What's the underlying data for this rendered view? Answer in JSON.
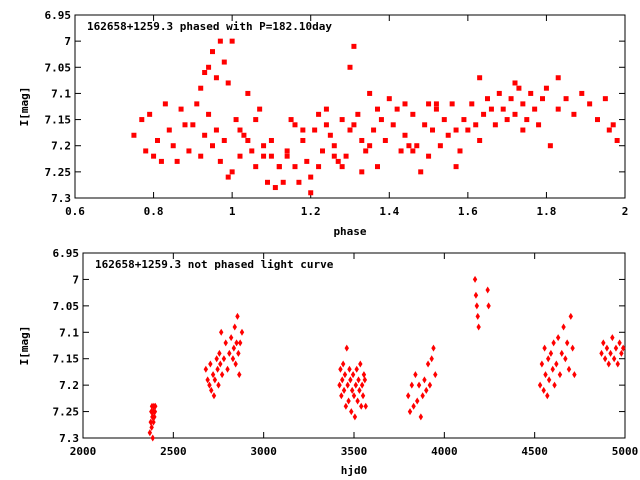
{
  "chart_data": [
    {
      "type": "scatter",
      "title": "162658+1259.3 phased with P=182.10day",
      "xlabel": "phase",
      "ylabel": "I[mag]",
      "xlim": [
        0.6,
        2.0
      ],
      "ylim": [
        6.95,
        7.3
      ],
      "y_inverted": true,
      "xticks": [
        "0.6",
        "0.8",
        "1",
        "1.2",
        "1.4",
        "1.6",
        "1.8",
        "2"
      ],
      "xtick_values": [
        0.6,
        0.8,
        1.0,
        1.2,
        1.4,
        1.6,
        1.8,
        2.0
      ],
      "yticks": [
        "6.95",
        "7",
        "7.05",
        "7.1",
        "7.15",
        "7.2",
        "7.25",
        "7.3"
      ],
      "ytick_values": [
        6.95,
        7.0,
        7.05,
        7.1,
        7.15,
        7.2,
        7.25,
        7.3
      ],
      "marker": "square",
      "color": "#ff0000",
      "points": [
        [
          0.75,
          7.18
        ],
        [
          0.77,
          7.15
        ],
        [
          0.78,
          7.21
        ],
        [
          0.79,
          7.14
        ],
        [
          0.8,
          7.22
        ],
        [
          0.81,
          7.19
        ],
        [
          0.82,
          7.23
        ],
        [
          0.83,
          7.12
        ],
        [
          0.84,
          7.17
        ],
        [
          0.85,
          7.2
        ],
        [
          0.86,
          7.23
        ],
        [
          0.87,
          7.13
        ],
        [
          0.88,
          7.16
        ],
        [
          0.89,
          7.21
        ],
        [
          0.9,
          7.16
        ],
        [
          0.91,
          7.12
        ],
        [
          0.92,
          7.22
        ],
        [
          0.93,
          7.18
        ],
        [
          0.94,
          7.14
        ],
        [
          0.95,
          7.2
        ],
        [
          0.96,
          7.17
        ],
        [
          0.97,
          7.23
        ],
        [
          0.98,
          7.19
        ],
        [
          0.99,
          7.26
        ],
        [
          1.0,
          7.25
        ],
        [
          1.01,
          7.15
        ],
        [
          1.02,
          7.22
        ],
        [
          1.03,
          7.18
        ],
        [
          1.04,
          7.1
        ],
        [
          1.05,
          7.21
        ],
        [
          1.06,
          7.24
        ],
        [
          1.07,
          7.13
        ],
        [
          1.08,
          7.22
        ],
        [
          1.09,
          7.27
        ],
        [
          1.1,
          7.19
        ],
        [
          1.11,
          7.28
        ],
        [
          1.12,
          7.24
        ],
        [
          1.13,
          7.27
        ],
        [
          1.14,
          7.21
        ],
        [
          1.15,
          7.15
        ],
        [
          1.16,
          7.24
        ],
        [
          1.17,
          7.27
        ],
        [
          1.18,
          7.19
        ],
        [
          1.19,
          7.23
        ],
        [
          1.2,
          7.26
        ],
        [
          1.21,
          7.17
        ],
        [
          1.22,
          7.14
        ],
        [
          1.23,
          7.21
        ],
        [
          1.24,
          7.16
        ],
        [
          1.25,
          7.18
        ],
        [
          1.26,
          7.2
        ],
        [
          1.27,
          7.23
        ],
        [
          1.28,
          7.15
        ],
        [
          1.29,
          7.22
        ],
        [
          1.3,
          7.17
        ],
        [
          1.31,
          7.16
        ],
        [
          1.32,
          7.14
        ],
        [
          1.33,
          7.19
        ],
        [
          1.34,
          7.21
        ],
        [
          1.35,
          7.1
        ],
        [
          1.36,
          7.17
        ],
        [
          1.37,
          7.13
        ],
        [
          1.38,
          7.15
        ],
        [
          1.39,
          7.19
        ],
        [
          1.4,
          7.11
        ],
        [
          1.41,
          7.16
        ],
        [
          1.42,
          7.13
        ],
        [
          1.43,
          7.21
        ],
        [
          1.44,
          7.18
        ],
        [
          1.45,
          7.2
        ],
        [
          1.46,
          7.14
        ],
        [
          1.47,
          7.2
        ],
        [
          1.48,
          7.25
        ],
        [
          1.49,
          7.16
        ],
        [
          1.5,
          7.22
        ],
        [
          1.51,
          7.17
        ],
        [
          1.52,
          7.13
        ],
        [
          1.53,
          7.2
        ],
        [
          1.54,
          7.15
        ],
        [
          1.55,
          7.18
        ],
        [
          1.56,
          7.12
        ],
        [
          1.57,
          7.17
        ],
        [
          1.58,
          7.21
        ],
        [
          1.59,
          7.15
        ],
        [
          1.6,
          7.17
        ],
        [
          1.61,
          7.12
        ],
        [
          1.62,
          7.16
        ],
        [
          1.63,
          7.19
        ],
        [
          1.64,
          7.14
        ],
        [
          1.65,
          7.11
        ],
        [
          1.66,
          7.13
        ],
        [
          1.67,
          7.16
        ],
        [
          1.68,
          7.1
        ],
        [
          1.69,
          7.13
        ],
        [
          1.7,
          7.15
        ],
        [
          1.71,
          7.11
        ],
        [
          1.72,
          7.14
        ],
        [
          1.73,
          7.09
        ],
        [
          1.74,
          7.12
        ],
        [
          1.75,
          7.15
        ],
        [
          1.76,
          7.1
        ],
        [
          1.77,
          7.13
        ],
        [
          1.78,
          7.16
        ],
        [
          1.79,
          7.11
        ],
        [
          1.8,
          7.09
        ],
        [
          1.81,
          7.2
        ],
        [
          1.83,
          7.13
        ],
        [
          1.85,
          7.11
        ],
        [
          1.87,
          7.14
        ],
        [
          1.89,
          7.1
        ],
        [
          1.91,
          7.12
        ],
        [
          1.93,
          7.15
        ],
        [
          1.95,
          7.11
        ],
        [
          1.96,
          7.17
        ],
        [
          1.98,
          7.19
        ],
        [
          0.92,
          7.09
        ],
        [
          0.93,
          7.06
        ],
        [
          0.94,
          7.05
        ],
        [
          0.95,
          7.02
        ],
        [
          0.96,
          7.07
        ],
        [
          0.97,
          7.0
        ],
        [
          0.98,
          7.04
        ],
        [
          0.99,
          7.08
        ],
        [
          1.0,
          7.0
        ],
        [
          1.02,
          7.17
        ],
        [
          1.04,
          7.19
        ],
        [
          1.06,
          7.15
        ],
        [
          1.08,
          7.2
        ],
        [
          1.1,
          7.22
        ],
        [
          1.12,
          7.24
        ],
        [
          1.14,
          7.22
        ],
        [
          1.16,
          7.16
        ],
        [
          1.18,
          7.17
        ],
        [
          1.2,
          7.29
        ],
        [
          1.22,
          7.24
        ],
        [
          1.24,
          7.13
        ],
        [
          1.26,
          7.22
        ],
        [
          1.28,
          7.24
        ],
        [
          1.3,
          7.05
        ],
        [
          1.31,
          7.01
        ],
        [
          1.33,
          7.25
        ],
        [
          1.35,
          7.2
        ],
        [
          1.37,
          7.24
        ],
        [
          1.44,
          7.12
        ],
        [
          1.46,
          7.21
        ],
        [
          1.5,
          7.12
        ],
        [
          1.52,
          7.12
        ],
        [
          1.57,
          7.24
        ],
        [
          1.63,
          7.07
        ],
        [
          1.72,
          7.08
        ],
        [
          1.74,
          7.17
        ],
        [
          1.83,
          7.07
        ],
        [
          1.97,
          7.16
        ]
      ]
    },
    {
      "type": "scatter",
      "title": "162658+1259.3 not phased light curve",
      "xlabel": "hjd0",
      "ylabel": "I[mag]",
      "xlim": [
        2000,
        5000
      ],
      "ylim": [
        6.95,
        7.3
      ],
      "y_inverted": true,
      "xticks": [
        "2000",
        "2500",
        "3000",
        "3500",
        "4000",
        "4500",
        "5000"
      ],
      "xtick_values": [
        2000,
        2500,
        3000,
        3500,
        4000,
        4500,
        5000
      ],
      "yticks": [
        "6.95",
        "7",
        "7.05",
        "7.1",
        "7.15",
        "7.2",
        "7.25",
        "7.3"
      ],
      "ytick_values": [
        6.95,
        7.0,
        7.05,
        7.1,
        7.15,
        7.2,
        7.25,
        7.3
      ],
      "marker": "diamond",
      "color": "#ff0000",
      "points": [
        [
          2370,
          7.29
        ],
        [
          2375,
          7.27
        ],
        [
          2378,
          7.25
        ],
        [
          2380,
          7.28
        ],
        [
          2382,
          7.24
        ],
        [
          2384,
          7.26
        ],
        [
          2386,
          7.3
        ],
        [
          2388,
          7.25
        ],
        [
          2390,
          7.27
        ],
        [
          2392,
          7.24
        ],
        [
          2395,
          7.26
        ],
        [
          2398,
          7.25
        ],
        [
          2400,
          7.24
        ],
        [
          2680,
          7.17
        ],
        [
          2690,
          7.19
        ],
        [
          2700,
          7.2
        ],
        [
          2705,
          7.16
        ],
        [
          2710,
          7.21
        ],
        [
          2720,
          7.18
        ],
        [
          2725,
          7.22
        ],
        [
          2730,
          7.19
        ],
        [
          2740,
          7.15
        ],
        [
          2745,
          7.17
        ],
        [
          2750,
          7.2
        ],
        [
          2755,
          7.14
        ],
        [
          2760,
          7.16
        ],
        [
          2765,
          7.1
        ],
        [
          2770,
          7.18
        ],
        [
          2780,
          7.15
        ],
        [
          2790,
          7.12
        ],
        [
          2800,
          7.17
        ],
        [
          2810,
          7.14
        ],
        [
          2820,
          7.11
        ],
        [
          2830,
          7.15
        ],
        [
          2835,
          7.13
        ],
        [
          2840,
          7.09
        ],
        [
          2845,
          7.16
        ],
        [
          2850,
          7.12
        ],
        [
          2855,
          7.07
        ],
        [
          2860,
          7.14
        ],
        [
          2865,
          7.18
        ],
        [
          2870,
          7.12
        ],
        [
          2880,
          7.1
        ],
        [
          3420,
          7.2
        ],
        [
          3425,
          7.17
        ],
        [
          3430,
          7.22
        ],
        [
          3435,
          7.19
        ],
        [
          3440,
          7.16
        ],
        [
          3445,
          7.21
        ],
        [
          3450,
          7.18
        ],
        [
          3455,
          7.24
        ],
        [
          3460,
          7.13
        ],
        [
          3465,
          7.2
        ],
        [
          3470,
          7.23
        ],
        [
          3475,
          7.17
        ],
        [
          3480,
          7.19
        ],
        [
          3485,
          7.25
        ],
        [
          3490,
          7.21
        ],
        [
          3495,
          7.18
        ],
        [
          3500,
          7.22
        ],
        [
          3505,
          7.26
        ],
        [
          3510,
          7.2
        ],
        [
          3515,
          7.17
        ],
        [
          3520,
          7.23
        ],
        [
          3525,
          7.19
        ],
        [
          3530,
          7.21
        ],
        [
          3535,
          7.16
        ],
        [
          3540,
          7.24
        ],
        [
          3545,
          7.2
        ],
        [
          3550,
          7.22
        ],
        [
          3555,
          7.18
        ],
        [
          3560,
          7.19
        ],
        [
          3565,
          7.24
        ],
        [
          3800,
          7.22
        ],
        [
          3810,
          7.25
        ],
        [
          3820,
          7.2
        ],
        [
          3830,
          7.24
        ],
        [
          3840,
          7.18
        ],
        [
          3850,
          7.23
        ],
        [
          3860,
          7.2
        ],
        [
          3870,
          7.26
        ],
        [
          3880,
          7.22
        ],
        [
          3890,
          7.19
        ],
        [
          3900,
          7.21
        ],
        [
          3910,
          7.16
        ],
        [
          3920,
          7.2
        ],
        [
          3930,
          7.15
        ],
        [
          3940,
          7.13
        ],
        [
          3950,
          7.18
        ],
        [
          4170,
          7.0
        ],
        [
          4175,
          7.03
        ],
        [
          4180,
          7.05
        ],
        [
          4185,
          7.07
        ],
        [
          4190,
          7.09
        ],
        [
          4240,
          7.02
        ],
        [
          4245,
          7.05
        ],
        [
          4530,
          7.2
        ],
        [
          4540,
          7.16
        ],
        [
          4550,
          7.21
        ],
        [
          4555,
          7.13
        ],
        [
          4560,
          7.18
        ],
        [
          4570,
          7.22
        ],
        [
          4575,
          7.15
        ],
        [
          4580,
          7.19
        ],
        [
          4590,
          7.14
        ],
        [
          4600,
          7.17
        ],
        [
          4605,
          7.12
        ],
        [
          4610,
          7.2
        ],
        [
          4620,
          7.16
        ],
        [
          4630,
          7.11
        ],
        [
          4640,
          7.18
        ],
        [
          4650,
          7.14
        ],
        [
          4660,
          7.09
        ],
        [
          4670,
          7.15
        ],
        [
          4680,
          7.12
        ],
        [
          4690,
          7.17
        ],
        [
          4700,
          7.07
        ],
        [
          4710,
          7.13
        ],
        [
          4720,
          7.18
        ],
        [
          4870,
          7.14
        ],
        [
          4880,
          7.12
        ],
        [
          4890,
          7.15
        ],
        [
          4900,
          7.13
        ],
        [
          4910,
          7.16
        ],
        [
          4920,
          7.14
        ],
        [
          4930,
          7.11
        ],
        [
          4940,
          7.15
        ],
        [
          4950,
          7.13
        ],
        [
          4960,
          7.16
        ],
        [
          4970,
          7.12
        ],
        [
          4980,
          7.14
        ],
        [
          4990,
          7.13
        ]
      ]
    }
  ]
}
